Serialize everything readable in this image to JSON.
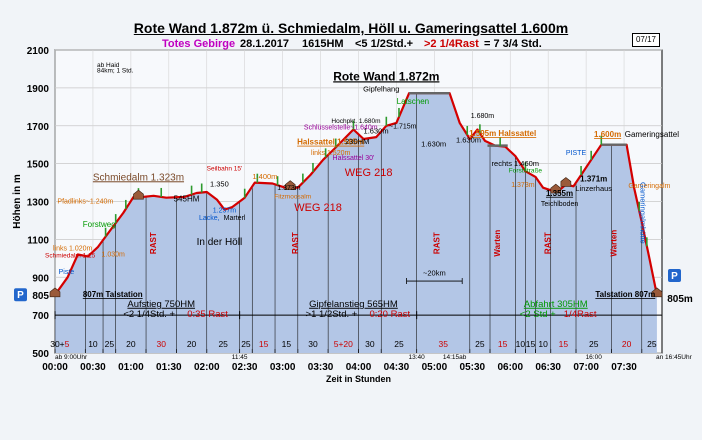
{
  "header": {
    "title": "Rote Wand 1.872m ü. Schmiedalm, Höll u. Gameringsattel 1.600m",
    "badge": "07/17",
    "subtitle_region": "Totes Gebirge",
    "subtitle_date": "28.1.2017",
    "subtitle_hm": "1615HM",
    "subtitle_time_a": "<5 1/2Std.+",
    "subtitle_time_b": ">2 1/4Rast",
    "subtitle_time_c": "= 7 3/4 Std."
  },
  "chart_data": {
    "type": "area",
    "title": "Rote Wand 1.872m",
    "xlabel": "Zeit in Stunden",
    "ylabel": "Höhen in m",
    "ylim": [
      500,
      2100
    ],
    "xlim_minutes": [
      0,
      480
    ],
    "yticks": [
      "500",
      "700",
      "900",
      "1100",
      "1300",
      "1500",
      "1700",
      "1900",
      "2100"
    ],
    "extra_ytick": "805",
    "xticks": [
      "00:00",
      "00:30",
      "01:00",
      "01:30",
      "02:00",
      "02:30",
      "03:00",
      "03:30",
      "04:00",
      "04:30",
      "05:00",
      "05:30",
      "06:00",
      "06:30",
      "07:00",
      "07:30"
    ],
    "grid": true,
    "colors": {
      "fill": "#b3c6e6",
      "line": "#d40000",
      "plateau": "#666666",
      "marker": "#9a5a3a"
    },
    "profile": [
      {
        "t": 0,
        "h": 807
      },
      {
        "t": 10,
        "h": 900
      },
      {
        "t": 18,
        "h": 1020
      },
      {
        "t": 26,
        "h": 1010
      },
      {
        "t": 34,
        "h": 1060
      },
      {
        "t": 44,
        "h": 1150
      },
      {
        "t": 54,
        "h": 1240
      },
      {
        "t": 62,
        "h": 1323
      },
      {
        "t": 68,
        "h": 1323
      },
      {
        "t": 78,
        "h": 1330
      },
      {
        "t": 88,
        "h": 1320
      },
      {
        "t": 98,
        "h": 1323
      },
      {
        "t": 102,
        "h": 1323
      },
      {
        "t": 112,
        "h": 1345
      },
      {
        "t": 120,
        "h": 1350
      },
      {
        "t": 128,
        "h": 1310
      },
      {
        "t": 134,
        "h": 1257
      },
      {
        "t": 140,
        "h": 1270
      },
      {
        "t": 150,
        "h": 1320
      },
      {
        "t": 158,
        "h": 1400
      },
      {
        "t": 172,
        "h": 1395
      },
      {
        "t": 182,
        "h": 1373
      },
      {
        "t": 192,
        "h": 1373
      },
      {
        "t": 202,
        "h": 1440
      },
      {
        "t": 212,
        "h": 1520
      },
      {
        "t": 222,
        "h": 1585
      },
      {
        "t": 230,
        "h": 1640
      },
      {
        "t": 236,
        "h": 1680
      },
      {
        "t": 244,
        "h": 1630
      },
      {
        "t": 254,
        "h": 1640
      },
      {
        "t": 262,
        "h": 1700
      },
      {
        "t": 270,
        "h": 1715
      },
      {
        "t": 280,
        "h": 1872
      },
      {
        "t": 312,
        "h": 1872
      },
      {
        "t": 320,
        "h": 1715
      },
      {
        "t": 328,
        "h": 1630
      },
      {
        "t": 334,
        "h": 1680
      },
      {
        "t": 340,
        "h": 1620
      },
      {
        "t": 348,
        "h": 1595
      },
      {
        "t": 356,
        "h": 1590
      },
      {
        "t": 364,
        "h": 1540
      },
      {
        "t": 372,
        "h": 1460
      },
      {
        "t": 380,
        "h": 1430
      },
      {
        "t": 386,
        "h": 1373
      },
      {
        "t": 394,
        "h": 1355
      },
      {
        "t": 398,
        "h": 1355
      },
      {
        "t": 404,
        "h": 1390
      },
      {
        "t": 410,
        "h": 1380
      },
      {
        "t": 416,
        "h": 1440
      },
      {
        "t": 424,
        "h": 1520
      },
      {
        "t": 432,
        "h": 1600
      },
      {
        "t": 452,
        "h": 1600
      },
      {
        "t": 458,
        "h": 1370
      },
      {
        "t": 464,
        "h": 1190
      },
      {
        "t": 470,
        "h": 1000
      },
      {
        "t": 476,
        "h": 807
      }
    ],
    "plateaus": [
      {
        "t0": 280,
        "t1": 312,
        "h": 1872
      },
      {
        "t0": 342,
        "t1": 358,
        "h": 1595
      },
      {
        "t0": 432,
        "t1": 452,
        "h": 1600
      },
      {
        "t0": 62,
        "t1": 102,
        "h": 1323
      }
    ],
    "labels": [
      {
        "t": 136,
        "h": 2010,
        "text": "ab Haid",
        "color": "#000000",
        "size": 6.5,
        "anchor": "start",
        "dx": -130
      },
      {
        "t": 136,
        "h": 1980,
        "text": "84km; 1 Std.",
        "color": "#000000",
        "size": 6.5,
        "anchor": "start",
        "dx": -130
      },
      {
        "t": 262,
        "h": 1940,
        "text": "Rote Wand 1.872m",
        "color": "#000000",
        "size": 12,
        "weight": "bold",
        "anchor": "middle",
        "underline": true
      },
      {
        "t": 258,
        "h": 1880,
        "text": "Gipfelhang",
        "color": "#000000",
        "size": 7.5,
        "anchor": "middle"
      },
      {
        "t": 283,
        "h": 1815,
        "text": "Latschen",
        "color": "#009900",
        "size": 8,
        "anchor": "middle"
      },
      {
        "t": 238,
        "h": 1715,
        "text": "Hochpkt. 1.680m",
        "color": "#000000",
        "size": 6.5,
        "anchor": "middle"
      },
      {
        "t": 275,
        "h": 1685,
        "text": "~1.715m",
        "color": "#000000",
        "size": 7,
        "anchor": "middle"
      },
      {
        "t": 226,
        "h": 1680,
        "text": "Schlüsselstelle~1.640m",
        "color": "#990099",
        "size": 7,
        "anchor": "middle"
      },
      {
        "t": 244,
        "h": 1660,
        "text": "1.630m",
        "color": "#000000",
        "size": 7.5,
        "anchor": "start"
      },
      {
        "t": 252,
        "h": 1590,
        "text": "1.630m",
        "color": "#000000",
        "size": 7.5,
        "anchor": "middle",
        "dx": 60
      },
      {
        "t": 238,
        "h": 1592,
        "text": "1.630m",
        "color": "#000000",
        "size": 7.5,
        "anchor": "middle",
        "dx": -230,
        "hide": true
      },
      {
        "t": 218,
        "h": 1600,
        "text": "Halssattel 1.585m",
        "color": "#d46a00",
        "size": 8,
        "weight": "bold",
        "anchor": "middle",
        "underline": true
      },
      {
        "t": 218,
        "h": 1545,
        "text": "links 1.520m",
        "color": "#d46a00",
        "size": 7,
        "anchor": "middle"
      },
      {
        "t": 236,
        "h": 1520,
        "text": "Halssattel 30'",
        "color": "#990099",
        "size": 7,
        "anchor": "middle"
      },
      {
        "t": 239,
        "h": 1700,
        "text": "230HM",
        "color": "#000000",
        "size": 7.5,
        "anchor": "middle",
        "dx": 0,
        "dy": 18
      },
      {
        "t": 248,
        "h": 1435,
        "text": "WEG 218",
        "color": "#cc0000",
        "size": 11,
        "anchor": "middle"
      },
      {
        "t": 208,
        "h": 1250,
        "text": "WEG 218",
        "color": "#cc0000",
        "size": 11,
        "anchor": "middle"
      },
      {
        "t": 185,
        "h": 1360,
        "text": "1.373m",
        "color": "#000000",
        "size": 7,
        "anchor": "middle"
      },
      {
        "t": 186,
        "h": 1305,
        "text": "Forstraße",
        "color": "#d46a00",
        "size": 6.5,
        "anchor": "middle",
        "hide": true
      },
      {
        "t": 188,
        "h": 1315,
        "text": "Fitzmoosalm",
        "color": "#d46a00",
        "size": 6.5,
        "anchor": "middle"
      },
      {
        "t": 166,
        "h": 1420,
        "text": "1.400m",
        "color": "#d46a00",
        "size": 7.5,
        "anchor": "middle"
      },
      {
        "t": 134,
        "h": 1465,
        "text": "Seilbahn 15'",
        "color": "#cc0000",
        "size": 6.5,
        "anchor": "middle"
      },
      {
        "t": 130,
        "h": 1380,
        "text": "1.350",
        "color": "#000000",
        "size": 7.5,
        "anchor": "middle"
      },
      {
        "t": 134,
        "h": 1242,
        "text": "1.257m",
        "color": "#0055cc",
        "size": 7,
        "anchor": "middle"
      },
      {
        "t": 122,
        "h": 1203,
        "text": "Lacke,",
        "color": "#0055cc",
        "size": 7,
        "anchor": "middle"
      },
      {
        "t": 142,
        "h": 1203,
        "text": "Marterl",
        "color": "#000000",
        "size": 7,
        "anchor": "middle"
      },
      {
        "t": 130,
        "h": 1070,
        "text": "In der Höll",
        "color": "#000000",
        "size": 10,
        "anchor": "middle"
      },
      {
        "t": 104,
        "h": 1300,
        "text": "545HM",
        "color": "#000000",
        "size": 8,
        "anchor": "middle",
        "dx": 0
      },
      {
        "t": 66,
        "h": 1412,
        "text": "Schmiedalm 1.323m",
        "color": "#7a4a2a",
        "size": 10,
        "anchor": "middle",
        "underline": true
      },
      {
        "t": 24,
        "h": 1290,
        "text": "Pfadlinks~1.240m",
        "color": "#d46a00",
        "size": 7,
        "anchor": "middle"
      },
      {
        "t": 35,
        "h": 1165,
        "text": "Forstweg",
        "color": "#009900",
        "size": 8,
        "anchor": "middle"
      },
      {
        "t": 14,
        "h": 1040,
        "text": "links 1.020m",
        "color": "#d46a00",
        "size": 7,
        "anchor": "middle"
      },
      {
        "t": 12,
        "h": 1005,
        "text": "Schmiedalm 1:15",
        "color": "#cc0000",
        "size": 6.5,
        "anchor": "middle"
      },
      {
        "t": 46,
        "h": 1010,
        "text": "1.030m",
        "color": "#d46a00",
        "size": 7,
        "anchor": "middle"
      },
      {
        "t": 9,
        "h": 918,
        "text": "Piste",
        "color": "#0055cc",
        "size": 7,
        "anchor": "middle"
      },
      {
        "t": 22,
        "h": 795,
        "text": "807m Talstation",
        "color": "#000000",
        "size": 8,
        "weight": "bold",
        "anchor": "start",
        "underline": true
      },
      {
        "t": 354,
        "h": 1645,
        "text": "1.595m Halssattel",
        "color": "#d46a00",
        "size": 8,
        "weight": "bold",
        "anchor": "middle",
        "underline": true
      },
      {
        "t": 338,
        "h": 1740,
        "text": "1.680m",
        "color": "#000000",
        "size": 7,
        "anchor": "middle"
      },
      {
        "t": 327,
        "h": 1612,
        "text": "1.630m",
        "color": "#000000",
        "size": 7.5,
        "anchor": "middle"
      },
      {
        "t": 364,
        "h": 1487,
        "text": "rechts 1.460m",
        "color": "#000000",
        "size": 7.5,
        "anchor": "middle"
      },
      {
        "t": 372,
        "h": 1452,
        "text": "Forststraße",
        "color": "#009900",
        "size": 6.5,
        "anchor": "middle"
      },
      {
        "t": 370,
        "h": 1377,
        "text": "1.373m",
        "color": "#d46a00",
        "size": 7,
        "anchor": "middle"
      },
      {
        "t": 399,
        "h": 1330,
        "text": "1.355m",
        "color": "#000000",
        "size": 8,
        "weight": "bold",
        "anchor": "middle",
        "underline": true
      },
      {
        "t": 399,
        "h": 1275,
        "text": "Teichlboden",
        "color": "#000000",
        "size": 7,
        "anchor": "middle"
      },
      {
        "t": 426,
        "h": 1405,
        "text": "1.371m",
        "color": "#000000",
        "size": 8,
        "weight": "bold",
        "anchor": "middle"
      },
      {
        "t": 426,
        "h": 1355,
        "text": "Linzerhaus",
        "color": "#000000",
        "size": 7.5,
        "anchor": "middle"
      },
      {
        "t": 412,
        "h": 1545,
        "text": "PISTE",
        "color": "#0055cc",
        "size": 7,
        "anchor": "middle"
      },
      {
        "t": 437,
        "h": 1640,
        "text": "1.600m",
        "color": "#d46a00",
        "size": 8,
        "weight": "bold",
        "anchor": "middle",
        "underline": true
      },
      {
        "t": 472,
        "h": 1640,
        "text": "Gameringsattel",
        "color": "#000000",
        "size": 8,
        "anchor": "middle"
      },
      {
        "t": 470,
        "h": 1370,
        "text": "Gameringalm",
        "color": "#d46a00",
        "size": 7,
        "anchor": "middle"
      },
      {
        "t": 451,
        "h": 795,
        "text": "Talstation 807m",
        "color": "#000000",
        "size": 8,
        "weight": "bold",
        "anchor": "middle",
        "underline": true
      },
      {
        "t": 440,
        "h": 1083,
        "text": "1:20Std",
        "color": "#000000",
        "size": 6.5,
        "anchor": "middle",
        "hide": true
      },
      {
        "t": 300,
        "h": 910,
        "text": "~20km",
        "color": "#000000",
        "size": 7.5,
        "anchor": "middle"
      },
      {
        "t": 84,
        "h": 744,
        "text": "Aufstieg 750HM",
        "color": "#000000",
        "size": 9.5,
        "anchor": "middle",
        "underline": true
      },
      {
        "t": 84,
        "h": 690,
        "text": "<2 1/4Std. +",
        "color": "#000000",
        "size": 9.5,
        "anchor": "middle",
        "dx": -12
      },
      {
        "t": 84,
        "h": 690,
        "text": "0:35 Rast",
        "color": "#cc0000",
        "size": 9.5,
        "anchor": "start",
        "dx": 26
      },
      {
        "t": 236,
        "h": 744,
        "text": "Gipfelanstieg 565HM",
        "color": "#000000",
        "size": 9.5,
        "anchor": "middle",
        "underline": true
      },
      {
        "t": 236,
        "h": 690,
        "text": ">1 1/2Std. +",
        "color": "#000000",
        "size": 9.5,
        "anchor": "middle",
        "dx": -22
      },
      {
        "t": 236,
        "h": 690,
        "text": "0:20 Rast",
        "color": "#cc0000",
        "size": 9.5,
        "anchor": "start",
        "dx": 16
      },
      {
        "t": 396,
        "h": 744,
        "text": "Abfahrt 305HM",
        "color": "#009900",
        "size": 9.5,
        "anchor": "middle",
        "underline": true
      },
      {
        "t": 396,
        "h": 690,
        "text": "<2 Std +",
        "color": "#009900",
        "size": 9.5,
        "anchor": "middle",
        "dx": -18
      },
      {
        "t": 396,
        "h": 690,
        "text": "1/4Rast",
        "color": "#cc0000",
        "size": 9.5,
        "anchor": "start",
        "dx": 8
      }
    ],
    "vertical_labels": [
      {
        "t": 80,
        "text": "RAST",
        "color": "#cc0000",
        "size": 8,
        "weight": "bold"
      },
      {
        "t": 192,
        "text": "RAST",
        "color": "#cc0000",
        "size": 8,
        "weight": "bold"
      },
      {
        "t": 304,
        "text": "RAST",
        "color": "#cc0000",
        "size": 8,
        "weight": "bold"
      },
      {
        "t": 352,
        "text": "Warten",
        "color": "#cc0000",
        "size": 8,
        "weight": "bold"
      },
      {
        "t": 392,
        "text": "RAST",
        "color": "#cc0000",
        "size": 8,
        "weight": "bold"
      },
      {
        "t": 444,
        "text": "Warten",
        "color": "#cc0000",
        "size": 8,
        "weight": "bold"
      }
    ],
    "side_labels": [
      {
        "t": 460,
        "h": 1240,
        "text": "Gameringalmhütte",
        "color": "#0055cc",
        "size": 7.5
      }
    ],
    "dividers": [
      0,
      24,
      38,
      48,
      72,
      96,
      120,
      146,
      156,
      174,
      192,
      216,
      240,
      258,
      286,
      328,
      344,
      364,
      372,
      380,
      392,
      412,
      440,
      464,
      480
    ],
    "segments": [
      {
        "t": 10,
        "text": "30+5",
        "color": "#000000",
        "color2": "#cc0000"
      },
      {
        "t": 30,
        "text": "10",
        "color": "#000000"
      },
      {
        "t": 43,
        "text": "25",
        "color": "#000000"
      },
      {
        "t": 60,
        "text": "20",
        "color": "#000000"
      },
      {
        "t": 84,
        "text": "30",
        "color": "#cc0000"
      },
      {
        "t": 108,
        "text": "20",
        "color": "#000000"
      },
      {
        "t": 133,
        "text": "25",
        "color": "#000000"
      },
      {
        "t": 151,
        "text": "25",
        "color": "#000000"
      },
      {
        "t": 165,
        "text": "15",
        "color": "#cc0000"
      },
      {
        "t": 183,
        "text": "15",
        "color": "#000000"
      },
      {
        "t": 204,
        "text": "30",
        "color": "#000000"
      },
      {
        "t": 228,
        "text": "5+20",
        "color": "#cc0000"
      },
      {
        "t": 249,
        "text": "30",
        "color": "#000000"
      },
      {
        "t": 272,
        "text": "25",
        "color": "#000000"
      },
      {
        "t": 307,
        "text": "35",
        "color": "#cc0000"
      },
      {
        "t": 336,
        "text": "25",
        "color": "#000000"
      },
      {
        "t": 354,
        "text": "15",
        "color": "#cc0000"
      },
      {
        "t": 368,
        "text": "10",
        "color": "#000000"
      },
      {
        "t": 376,
        "text": "15",
        "color": "#000000"
      },
      {
        "t": 386,
        "text": "10",
        "color": "#000000"
      },
      {
        "t": 402,
        "text": "15",
        "color": "#cc0000"
      },
      {
        "t": 426,
        "text": "25",
        "color": "#000000"
      },
      {
        "t": 452,
        "text": "20",
        "color": "#cc0000"
      },
      {
        "t": 472,
        "text": "25",
        "color": "#000000"
      }
    ],
    "times": [
      {
        "t": 0,
        "text": "ab 9:00Uhr"
      },
      {
        "t": 146,
        "text": "11:45"
      },
      {
        "t": 286,
        "text": "13:40"
      },
      {
        "t": 316,
        "text": "14:15ab"
      },
      {
        "t": 426,
        "text": "16:00"
      },
      {
        "t": 482,
        "text": "an 16:45Uhr"
      }
    ],
    "parking": [
      {
        "side": "left",
        "text": "P",
        "value": "805"
      },
      {
        "side": "right",
        "text": "P",
        "value": "805m"
      }
    ]
  }
}
